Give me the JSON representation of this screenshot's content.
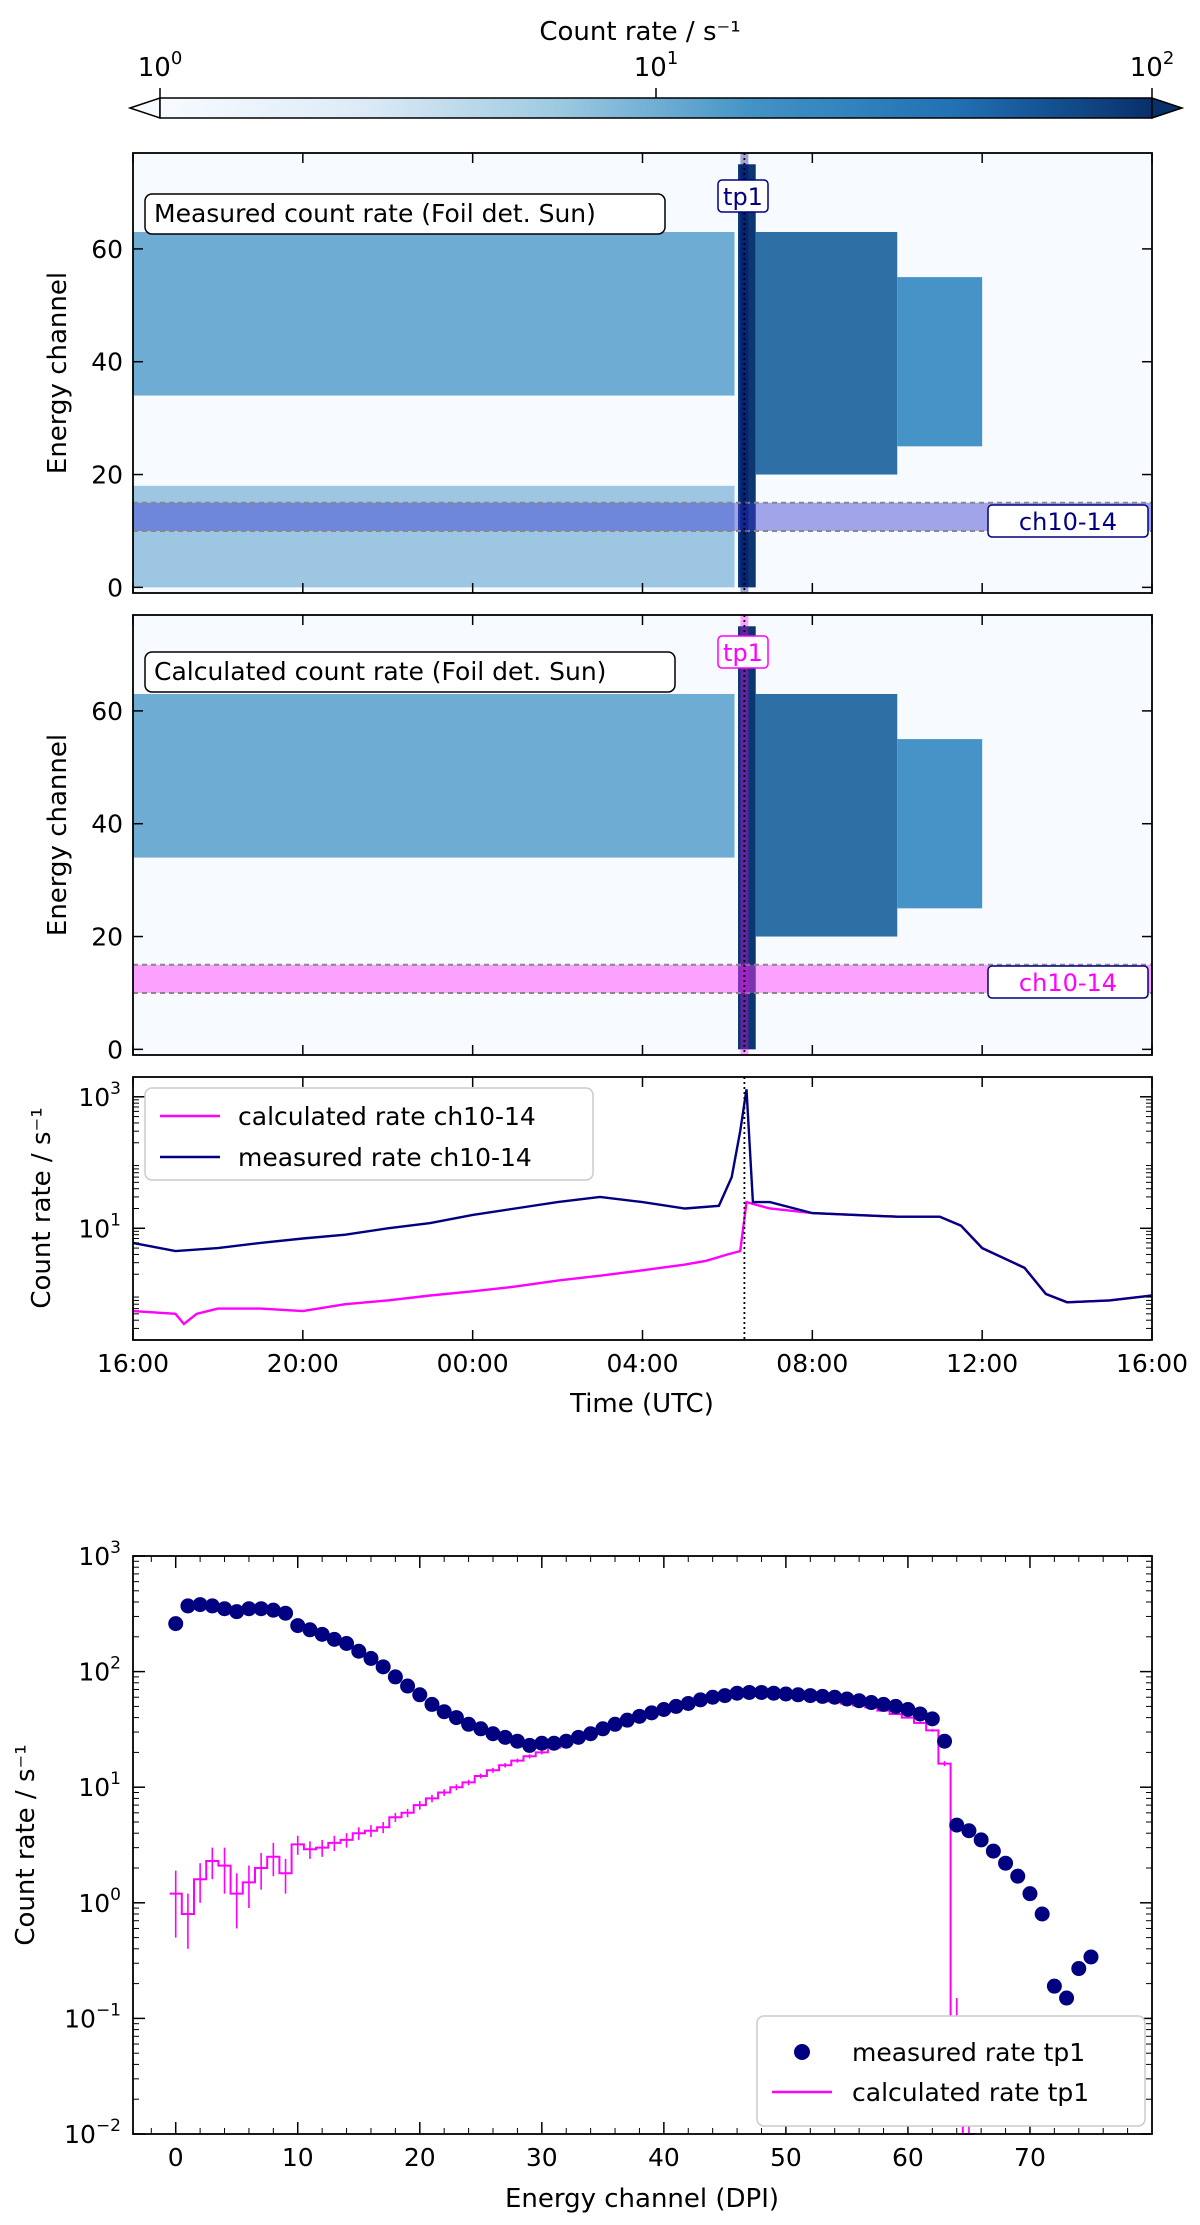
{
  "colorbar": {
    "label": "Count rate / s⁻¹",
    "tick_labels": [
      {
        "base": "10",
        "exp": "0"
      },
      {
        "base": "10",
        "exp": "1"
      },
      {
        "base": "10",
        "exp": "2"
      }
    ],
    "scale": "log",
    "min": 1,
    "max": 100,
    "cmap_light": "#f7fbff",
    "cmap_dark": "#08306b",
    "extend": "both"
  },
  "chart_data": [
    {
      "type": "heatmap",
      "title": "Measured count rate (Foil det. Sun)",
      "ylabel": "Energy channel",
      "xlim": [
        "16:00",
        "16:00 (+24h)"
      ],
      "ylim": [
        -1,
        77
      ],
      "yticks": [
        "0",
        "20",
        "40",
        "60"
      ],
      "marker_label": "tp1",
      "marker_color": "#000080",
      "marker_time": "06:24",
      "band_label": "ch10-14",
      "band_channels": [
        10,
        15
      ],
      "band_color": "#3a3ad0",
      "regions": [
        {
          "t0": "16:00",
          "t1": "06:10",
          "channels": [
            34,
            63
          ],
          "rate": 8
        },
        {
          "t0": "16:00",
          "t1": "06:10",
          "channels": [
            0,
            18
          ],
          "rate": 4
        },
        {
          "t0": "06:15",
          "t1": "06:40",
          "channels": [
            0,
            75
          ],
          "rate": 90
        },
        {
          "t0": "06:40",
          "t1": "10:00",
          "channels": [
            20,
            63
          ],
          "rate": 30
        },
        {
          "t0": "10:00",
          "t1": "12:00",
          "channels": [
            25,
            55
          ],
          "rate": 15
        }
      ]
    },
    {
      "type": "heatmap",
      "title": "Calculated count rate (Foil det. Sun)",
      "ylabel": "Energy channel",
      "xlim": [
        "16:00",
        "16:00 (+24h)"
      ],
      "ylim": [
        -1,
        77
      ],
      "yticks": [
        "0",
        "20",
        "40",
        "60"
      ],
      "marker_label": "tp1",
      "marker_color": "#ff00ff",
      "marker_time": "06:24",
      "band_label": "ch10-14",
      "band_channels": [
        10,
        15
      ],
      "band_color": "#ff33ff",
      "regions": [
        {
          "t0": "16:00",
          "t1": "06:10",
          "channels": [
            34,
            63
          ],
          "rate": 8
        },
        {
          "t0": "06:15",
          "t1": "06:40",
          "channels": [
            0,
            75
          ],
          "rate": 90
        },
        {
          "t0": "06:40",
          "t1": "10:00",
          "channels": [
            20,
            63
          ],
          "rate": 30
        },
        {
          "t0": "10:00",
          "t1": "12:00",
          "channels": [
            25,
            55
          ],
          "rate": 15
        }
      ]
    },
    {
      "type": "line",
      "ylabel": "Count rate / s⁻¹",
      "xlabel": "Time (UTC)",
      "yscale": "log",
      "ylim": [
        0.2,
        2000
      ],
      "yticks": [
        {
          "base": "10",
          "exp": "1"
        },
        {
          "base": "10",
          "exp": "3"
        }
      ],
      "xticks": [
        "16:00",
        "20:00",
        "00:00",
        "04:00",
        "08:00",
        "12:00",
        "16:00"
      ],
      "xtick_hours": [
        0,
        4,
        8,
        12,
        16,
        20,
        24
      ],
      "marker_hour": 14.4,
      "legend_position": "upper-left",
      "series": [
        {
          "name": "calculated rate ch10-14",
          "color": "#ff00ff",
          "hours": [
            0,
            1,
            1.2,
            1.5,
            2,
            3,
            4,
            5,
            6,
            7,
            8,
            9,
            10,
            11,
            12,
            13,
            13.5,
            14,
            14.3,
            14.45,
            15,
            16,
            17,
            18,
            19,
            19.5,
            20,
            21,
            21.5,
            22,
            23,
            24
          ],
          "values": [
            0.55,
            0.5,
            0.35,
            0.5,
            0.6,
            0.6,
            0.55,
            0.7,
            0.8,
            0.95,
            1.1,
            1.3,
            1.6,
            1.9,
            2.3,
            2.8,
            3.2,
            4.0,
            4.5,
            25,
            20,
            17,
            16,
            15,
            15,
            11,
            5,
            2.5,
            1.0,
            0.75,
            0.8,
            0.95
          ]
        },
        {
          "name": "measured rate ch10-14",
          "color": "#000080",
          "hours": [
            0,
            1,
            2,
            3,
            4,
            5,
            6,
            7,
            8,
            9,
            10,
            11,
            12,
            13,
            13.8,
            14.1,
            14.3,
            14.45,
            14.6,
            15,
            16,
            17,
            18,
            19,
            19.5,
            20,
            21,
            21.5,
            22,
            23,
            24
          ],
          "values": [
            6,
            4.5,
            5,
            6,
            7,
            8,
            10,
            12,
            16,
            20,
            25,
            30,
            25,
            20,
            22,
            60,
            300,
            1300,
            25,
            25,
            17,
            16,
            15,
            15,
            11,
            5,
            2.5,
            1.0,
            0.75,
            0.8,
            0.95
          ]
        }
      ]
    },
    {
      "type": "scatter",
      "ylabel": "Count rate / s⁻¹",
      "xlabel": "Energy channel (DPI)",
      "yscale": "log",
      "xlim": [
        -3.5,
        80
      ],
      "ylim": [
        0.01,
        1000
      ],
      "xticks": [
        "0",
        "10",
        "20",
        "30",
        "40",
        "50",
        "60",
        "70"
      ],
      "xtick_values": [
        0,
        10,
        20,
        30,
        40,
        50,
        60,
        70
      ],
      "yticks": [
        {
          "base": "10",
          "exp": "−2"
        },
        {
          "base": "10",
          "exp": "−1"
        },
        {
          "base": "10",
          "exp": "0"
        },
        {
          "base": "10",
          "exp": "1"
        },
        {
          "base": "10",
          "exp": "2"
        },
        {
          "base": "10",
          "exp": "3"
        }
      ],
      "ytick_values": [
        0.01,
        0.1,
        1,
        10,
        100,
        1000
      ],
      "legend_position": "lower-right",
      "series": [
        {
          "name": "measured rate tp1",
          "color": "#000080",
          "kind": "points",
          "x": [
            0,
            1,
            2,
            3,
            4,
            5,
            6,
            7,
            8,
            9,
            10,
            11,
            12,
            13,
            14,
            15,
            16,
            17,
            18,
            19,
            20,
            21,
            22,
            23,
            24,
            25,
            26,
            27,
            28,
            29,
            30,
            31,
            32,
            33,
            34,
            35,
            36,
            37,
            38,
            39,
            40,
            41,
            42,
            43,
            44,
            45,
            46,
            47,
            48,
            49,
            50,
            51,
            52,
            53,
            54,
            55,
            56,
            57,
            58,
            59,
            60,
            61,
            62,
            63,
            64,
            65,
            66,
            67,
            68,
            69,
            70,
            71,
            72,
            73,
            74,
            75
          ],
          "y": [
            260,
            370,
            380,
            370,
            350,
            330,
            350,
            350,
            340,
            320,
            250,
            230,
            210,
            190,
            175,
            150,
            130,
            110,
            90,
            75,
            63,
            52,
            45,
            40,
            35,
            32,
            29,
            27,
            25,
            23,
            24,
            24,
            25,
            27,
            29,
            32,
            35,
            38,
            41,
            44,
            47,
            50,
            53,
            57,
            60,
            62,
            65,
            66,
            66,
            65,
            64,
            63,
            62,
            61,
            60,
            58,
            56,
            54,
            52,
            50,
            47,
            43,
            39,
            25,
            4.7,
            4.2,
            3.5,
            2.8,
            2.2,
            1.7,
            1.2,
            0.8,
            0.19,
            0.15,
            0.27,
            0.34
          ]
        },
        {
          "name": "calculated rate tp1",
          "color": "#ff00ff",
          "kind": "step",
          "x": [
            0,
            1,
            2,
            3,
            4,
            5,
            6,
            7,
            8,
            9,
            10,
            11,
            12,
            13,
            14,
            15,
            16,
            17,
            18,
            19,
            20,
            21,
            22,
            23,
            24,
            25,
            26,
            27,
            28,
            29,
            30,
            31,
            32,
            33,
            34,
            35,
            36,
            37,
            38,
            39,
            40,
            41,
            42,
            43,
            44,
            45,
            46,
            47,
            48,
            49,
            50,
            51,
            52,
            53,
            54,
            55,
            56,
            57,
            58,
            59,
            60,
            61,
            62,
            63,
            64,
            65
          ],
          "y": [
            1.2,
            0.8,
            1.6,
            2.3,
            2.1,
            1.2,
            1.5,
            2.0,
            2.5,
            1.8,
            3.2,
            2.9,
            3.0,
            3.3,
            3.5,
            4.0,
            4.2,
            4.5,
            5.5,
            6.0,
            7.0,
            8.0,
            9.0,
            10,
            11,
            12.5,
            14,
            15.5,
            17,
            18.5,
            20,
            22,
            24,
            27,
            30,
            33,
            36,
            39,
            42,
            45,
            48,
            51,
            54,
            57,
            59,
            61,
            62,
            63,
            63,
            62,
            61,
            60,
            59,
            57,
            55,
            53,
            51,
            49,
            46,
            43,
            40,
            36,
            31,
            16,
            0.1,
            0.01
          ],
          "yerr": [
            0.7,
            0.4,
            0.6,
            0.7,
            0.9,
            0.6,
            0.6,
            0.7,
            0.8,
            0.6,
            0.6,
            0.5,
            0.5,
            0.5,
            0.5,
            0.5,
            0.5,
            0.5,
            0.5,
            0.5,
            0.6,
            0.6,
            0.6,
            0.6,
            0.6,
            0.6,
            0.7,
            0.7,
            0.7,
            0.8,
            0.8,
            0.8,
            0.8,
            0.8,
            0.8,
            0.8,
            0.8,
            0.8,
            0.8,
            0.8,
            0.8,
            0.8,
            0.8,
            0.8,
            0.8,
            0.8,
            0.8,
            0.8,
            0.8,
            0.8,
            0.8,
            0.8,
            0.8,
            0.8,
            0.8,
            0.8,
            0.8,
            0.8,
            0.8,
            0.8,
            0.8,
            0.8,
            0.8,
            0.8,
            0.05,
            0.005
          ]
        }
      ]
    }
  ]
}
